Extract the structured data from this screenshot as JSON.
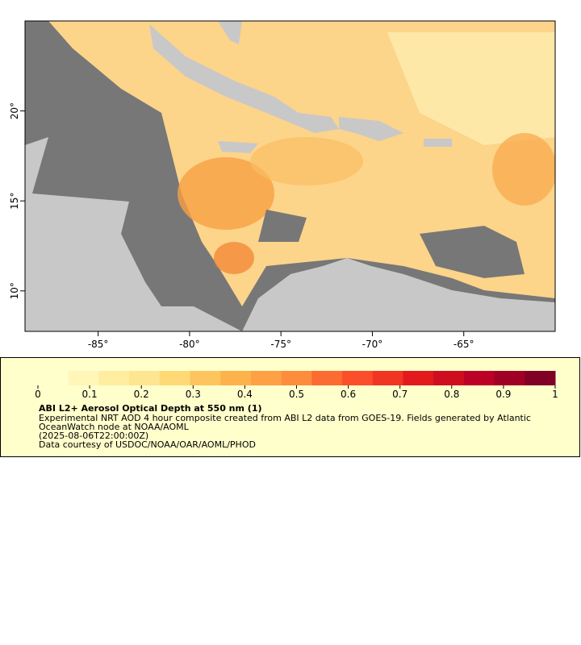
{
  "map": {
    "xlim": [
      -89,
      -60
    ],
    "ylim": [
      7.75,
      25
    ],
    "xticks": [
      {
        "value": -85,
        "label": "-85°"
      },
      {
        "value": -80,
        "label": "-80°"
      },
      {
        "value": -75,
        "label": "-75°"
      },
      {
        "value": -70,
        "label": "-70°"
      },
      {
        "value": -65,
        "label": "-65°"
      }
    ],
    "yticks": [
      {
        "value": 10,
        "label": "10°"
      },
      {
        "value": 15,
        "label": "15°"
      },
      {
        "value": 20,
        "label": "20°"
      }
    ]
  },
  "colorbar": {
    "lim": [
      0,
      1
    ],
    "ticks": [
      0,
      0.1,
      0.2,
      0.3,
      0.4,
      0.5,
      0.6,
      0.7,
      0.8,
      0.9,
      1
    ],
    "colors": [
      "#ffffcc",
      "#fff6b8",
      "#ffeda0",
      "#fee590",
      "#fed976",
      "#fec45e",
      "#feb24c",
      "#fea044",
      "#fd8d3c",
      "#fc6b31",
      "#fc4e2a",
      "#f03523",
      "#e31a1c",
      "#cf0d21",
      "#bd0026",
      "#a00026",
      "#800026"
    ],
    "title": "ABI L2+ Aerosol Optical Depth at 550 nm (1)",
    "lines": [
      "Experimental NRT AOD 4 hour composite created from ABI L2 data from GOES-19. Fields generated by Atlantic",
      "OceanWatch node at NOAA/AOML",
      "(2025-08-06T22:00:00Z)",
      "Data courtesy of USDOC/NOAA/OAR/AOML/PHOD"
    ]
  }
}
